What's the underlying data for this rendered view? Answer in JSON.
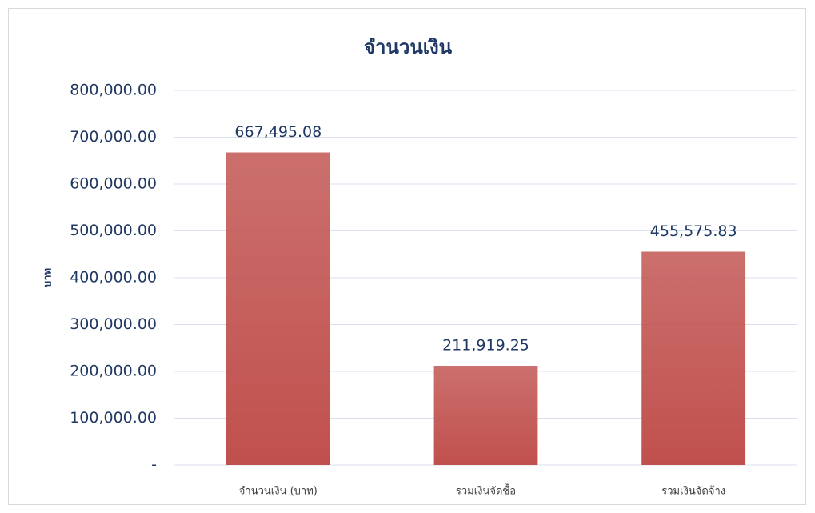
{
  "chart_data": {
    "type": "bar",
    "title": "จำนวนเงิน",
    "y_label": "บาท",
    "categories": [
      "จำนวนเงิน (บาท)",
      "รวมเงินจัดซื้อ",
      "รวมเงินจัดจ้าง"
    ],
    "values": [
      667495.08,
      211919.25,
      455575.83
    ],
    "value_labels": [
      "667,495.08",
      "211,919.25",
      "455,575.83"
    ],
    "color": "#c0504d",
    "ylim": [
      0,
      800000
    ],
    "yticks": [
      {
        "value": 0,
        "label": "-"
      },
      {
        "value": 100000,
        "label": "100,000.00"
      },
      {
        "value": 200000,
        "label": "200,000.00"
      },
      {
        "value": 300000,
        "label": "300,000.00"
      },
      {
        "value": 400000,
        "label": "400,000.00"
      },
      {
        "value": 500000,
        "label": "500,000.00"
      },
      {
        "value": 600000,
        "label": "600,000.00"
      },
      {
        "value": 700000,
        "label": "700,000.00"
      },
      {
        "value": 800000,
        "label": "800,000.00"
      }
    ],
    "grid": true
  }
}
